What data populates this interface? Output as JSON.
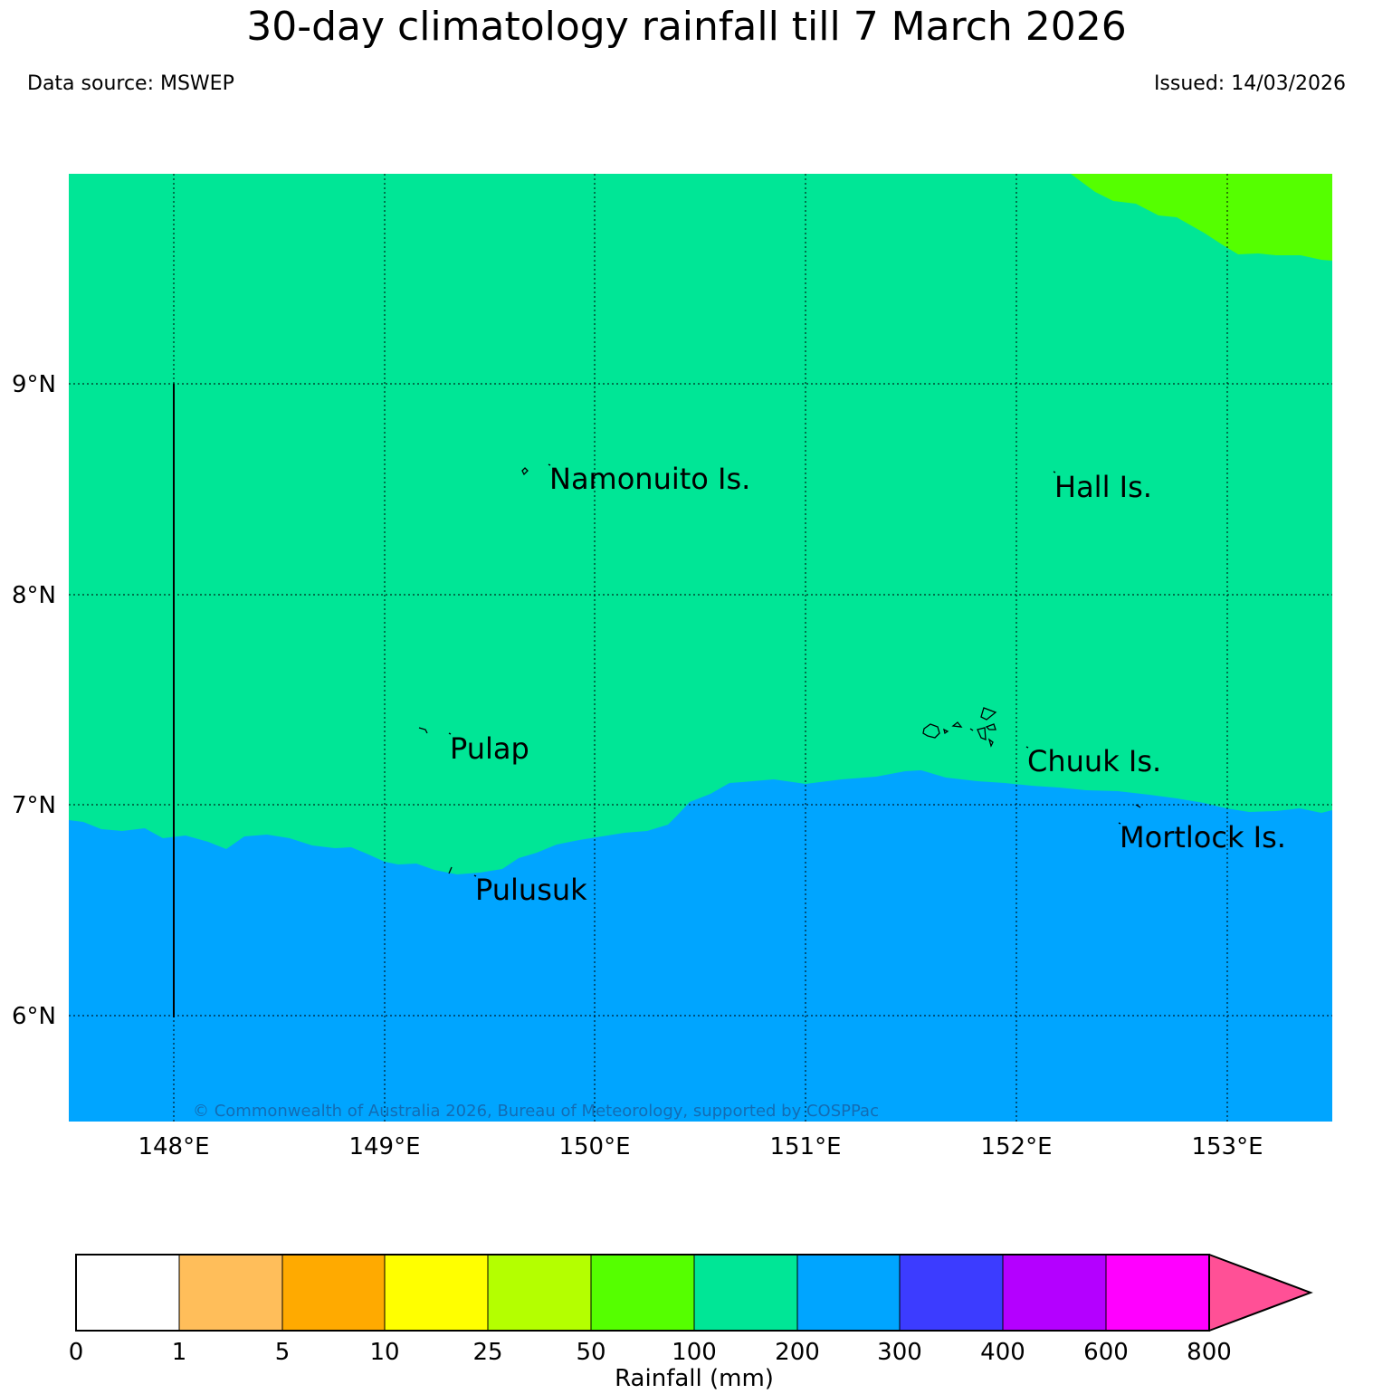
{
  "header": {
    "title": "30-day climatology rainfall till 7 March 2026",
    "data_source": "Data source: MSWEP",
    "issued": "Issued: 14/03/2026"
  },
  "map": {
    "lat_labels": [
      "9°N",
      "8°N",
      "7°N",
      "6°N"
    ],
    "lon_labels": [
      "148°E",
      "149°E",
      "150°E",
      "151°E",
      "152°E",
      "153°E"
    ],
    "places": {
      "namonuito": "Namonuito Is.",
      "hall": "Hall Is.",
      "pulap": "Pulap",
      "chuuk": "Chuuk Is.",
      "mortlock": "Mortlock Is.",
      "pulusuk": "Pulusuk"
    },
    "copyright": "© Commonwealth of Australia 2026, Bureau of Meteorology, supported by COSPPac",
    "region_colors": {
      "r50_100": "#55ff00",
      "r100_200": "#00e696",
      "r200_300": "#00a5ff"
    }
  },
  "legend": {
    "label": "Rainfall (mm)",
    "ticks": [
      "0",
      "1",
      "5",
      "10",
      "25",
      "50",
      "100",
      "200",
      "300",
      "400",
      "600",
      "800"
    ],
    "colors": [
      "#ffffff",
      "#ffbe5a",
      "#ffaa00",
      "#ffff00",
      "#b4ff00",
      "#55ff00",
      "#00e696",
      "#00a5ff",
      "#3c3cff",
      "#b400ff",
      "#ff00ff"
    ],
    "extend_color": "#ff5096"
  }
}
